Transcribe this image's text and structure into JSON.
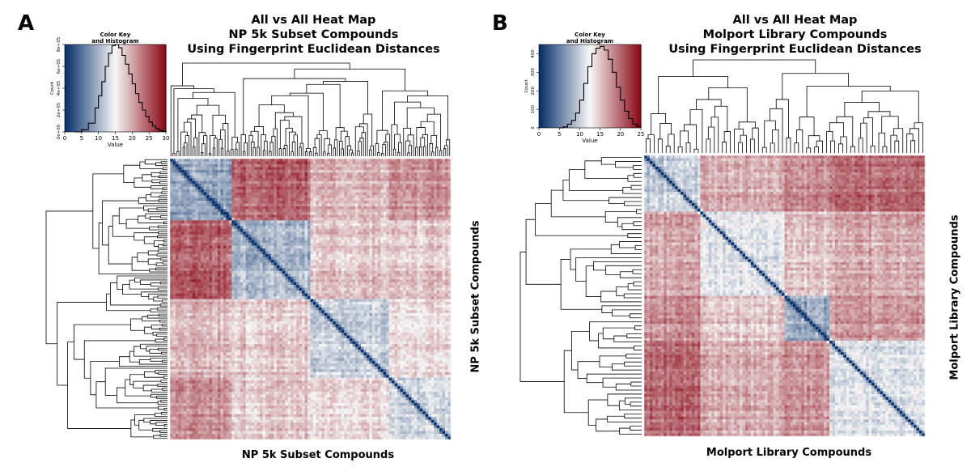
{
  "chart_data": [
    {
      "type": "heatmap",
      "panel_label": "A",
      "title_lines": [
        "All vs All Heat Map",
        "NP 5k Subset Compounds",
        "Using Fingerprint Euclidean Distances"
      ],
      "xlabel": "NP 5k Subset Compounds",
      "ylabel": "NP 5k Subset Compounds",
      "color_key": {
        "title_lines": [
          "Color Key",
          "and Histogram"
        ],
        "xlabel": "Value",
        "ylabel": "Count",
        "x_ticks": [
          "0",
          "5",
          "10",
          "15",
          "20",
          "25",
          "30"
        ],
        "x_range": [
          0,
          30
        ],
        "y_ticks": [
          "0e+00",
          "2e+05",
          "4e+05",
          "6e+05",
          "8e+05"
        ],
        "y_range": [
          0,
          800000
        ],
        "colors": {
          "low": "#08306b",
          "mid": "#f7f7f7",
          "high": "#8b0a17"
        },
        "histogram": {
          "x": [
            3,
            5,
            7,
            9,
            10,
            11,
            12,
            13,
            14,
            15,
            16,
            17,
            18,
            19,
            20,
            21,
            22,
            23,
            24,
            25,
            26,
            27,
            28,
            29,
            30
          ],
          "y": [
            0,
            20000,
            80000,
            220000,
            330000,
            460000,
            600000,
            720000,
            790000,
            800000,
            770000,
            700000,
            620000,
            530000,
            440000,
            350000,
            270000,
            200000,
            140000,
            90000,
            55000,
            30000,
            15000,
            5000,
            0
          ]
        }
      },
      "matrix_blocks": [
        0,
        22,
        50,
        78,
        100
      ],
      "block_means": [
        [
          0.3,
          0.82,
          0.64,
          0.72
        ],
        [
          0.82,
          0.34,
          0.6,
          0.6
        ],
        [
          0.64,
          0.6,
          0.4,
          0.56
        ],
        [
          0.72,
          0.6,
          0.56,
          0.42
        ]
      ]
    },
    {
      "type": "heatmap",
      "panel_label": "B",
      "title_lines": [
        "All vs All Heat Map",
        "Molport Library Compounds",
        "Using Fingerprint Euclidean Distances"
      ],
      "xlabel": "Molport Library Compounds",
      "ylabel": "Molport Library Compounds",
      "color_key": {
        "title_lines": [
          "Color Key",
          "and Histogram"
        ],
        "xlabel": "Value",
        "ylabel": "Count",
        "x_ticks": [
          "0",
          "5",
          "10",
          "15",
          "20",
          "25"
        ],
        "x_range": [
          0,
          25
        ],
        "y_ticks": [
          "0",
          "100",
          "200",
          "300",
          "400"
        ],
        "y_range": [
          0,
          450
        ],
        "colors": {
          "low": "#08306b",
          "mid": "#f7f7f7",
          "high": "#8b0a17"
        },
        "histogram": {
          "x": [
            5,
            6,
            7,
            8,
            9,
            10,
            11,
            12,
            13,
            14,
            15,
            16,
            17,
            18,
            19,
            20,
            21,
            22,
            23,
            24,
            25
          ],
          "y": [
            0,
            5,
            20,
            40,
            80,
            150,
            240,
            330,
            400,
            430,
            440,
            420,
            370,
            300,
            220,
            150,
            90,
            50,
            20,
            8,
            0
          ]
        }
      },
      "matrix_blocks": [
        0,
        20,
        50,
        66,
        100
      ],
      "block_means": [
        [
          0.4,
          0.66,
          0.72,
          0.8
        ],
        [
          0.66,
          0.46,
          0.6,
          0.66
        ],
        [
          0.72,
          0.6,
          0.3,
          0.7
        ],
        [
          0.8,
          0.66,
          0.7,
          0.45
        ]
      ]
    }
  ]
}
